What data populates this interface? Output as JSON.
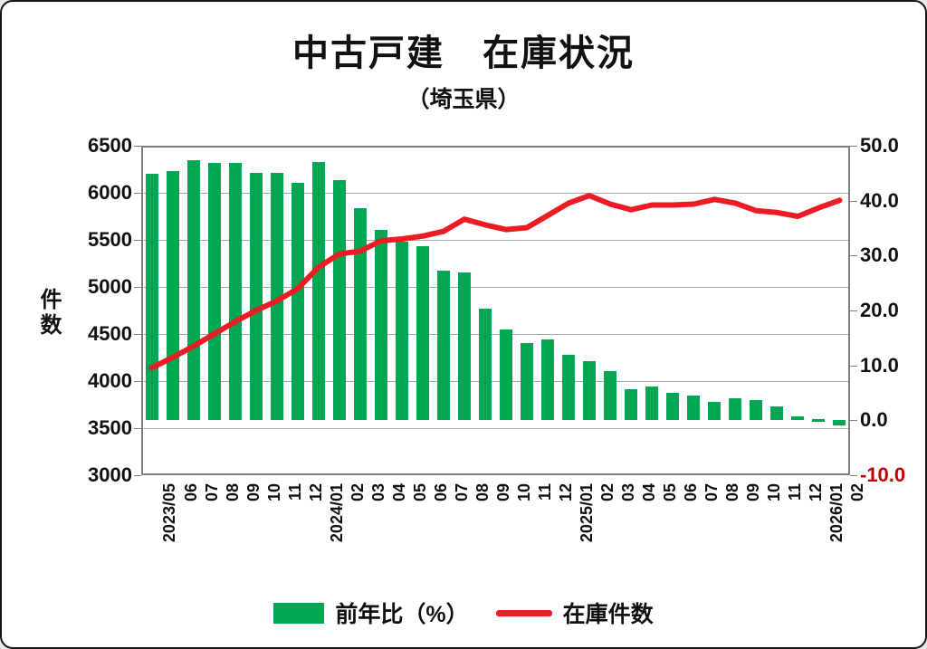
{
  "title": "中古戸建　在庫状況",
  "subtitle": "（埼玉県）",
  "legend": {
    "bar_label": "前年比（%）",
    "line_label": "在庫件数"
  },
  "y_axis_left": {
    "label": "件数",
    "ticks": [
      "6500",
      "6000",
      "5500",
      "5000",
      "4500",
      "4000",
      "3500",
      "3000"
    ]
  },
  "y_axis_right": {
    "ticks": [
      "50.0",
      "40.0",
      "30.0",
      "20.0",
      "10.0",
      "0.0",
      "-10.0"
    ],
    "negative_tick_color": "#C00000"
  },
  "colors": {
    "bar": "#00A651",
    "line": "#ED1C24",
    "grid": "#A8A8A8",
    "frame": "#808080",
    "text": "#111111",
    "negative_tick": "#C00000"
  },
  "chart_data": {
    "type": "combo",
    "categories": [
      "2023/05",
      "06",
      "07",
      "08",
      "09",
      "10",
      "11",
      "12",
      "2024/01",
      "02",
      "03",
      "04",
      "05",
      "06",
      "07",
      "08",
      "09",
      "10",
      "11",
      "12",
      "2025/01",
      "02",
      "03",
      "04",
      "05",
      "06",
      "07",
      "08",
      "09",
      "10",
      "11",
      "12",
      "2026/01",
      "02"
    ],
    "series": [
      {
        "name": "前年比（%）",
        "type": "bar",
        "axis": "right",
        "color": "#00A651",
        "values": [
          44.9,
          45.4,
          47.4,
          46.9,
          46.9,
          45.0,
          45.0,
          43.2,
          47.0,
          43.7,
          38.6,
          34.6,
          32.6,
          31.7,
          27.2,
          27.0,
          20.4,
          16.6,
          14.0,
          14.8,
          12.0,
          10.7,
          9.0,
          5.7,
          6.2,
          5.0,
          4.5,
          3.4,
          4.0,
          3.7,
          2.6,
          0.7,
          0.2,
          -1.0
        ]
      },
      {
        "name": "在庫件数",
        "type": "line",
        "axis": "left",
        "color": "#ED1C24",
        "values": [
          4140,
          4250,
          4370,
          4500,
          4630,
          4750,
          4850,
          4980,
          5210,
          5350,
          5380,
          5490,
          5510,
          5540,
          5590,
          5720,
          5660,
          5610,
          5630,
          5760,
          5890,
          5970,
          5880,
          5820,
          5870,
          5870,
          5880,
          5930,
          5890,
          5810,
          5790,
          5750,
          5840,
          5920
        ]
      }
    ],
    "axes": {
      "left": {
        "label": "件数",
        "range": [
          3000,
          6500
        ],
        "tick_step": 500
      },
      "right": {
        "range": [
          -10,
          50
        ],
        "tick_step": 10,
        "bar_baseline": 0
      }
    },
    "grid": true,
    "legend_position": "bottom"
  }
}
